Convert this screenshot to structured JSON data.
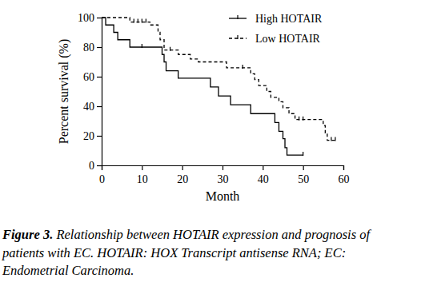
{
  "chart_data": {
    "type": "survival",
    "x_label": "Month",
    "y_label": "Percent survival (%)",
    "xlim": [
      0,
      60
    ],
    "xticks": [
      0,
      10,
      20,
      30,
      40,
      50,
      60
    ],
    "ylim": [
      0,
      100
    ],
    "yticks": [
      0,
      20,
      40,
      60,
      80,
      100
    ],
    "legend": "top-right",
    "series": [
      {
        "name": "High HOTAIR",
        "color": "#000000",
        "line_style": "solid",
        "marker": "tick",
        "x": [
          0,
          1,
          3,
          4,
          7,
          15,
          15.5,
          16,
          19,
          27,
          29,
          32,
          37,
          43,
          44,
          45,
          45.5,
          46,
          50
        ],
        "values": [
          100,
          95,
          90,
          85,
          80,
          75,
          70,
          64,
          59,
          53,
          47,
          41,
          35,
          29,
          23,
          18,
          12,
          7,
          7
        ],
        "censored": [
          10,
          50
        ]
      },
      {
        "name": "Low HOTAIR",
        "color": "#000000",
        "line_style": "dashed",
        "marker": "tick",
        "x": [
          0,
          7,
          12,
          14,
          14.5,
          15.5,
          19,
          22,
          24,
          31,
          37,
          38,
          39,
          41,
          42,
          44,
          45,
          46.5,
          48,
          55,
          55.5,
          56,
          58
        ],
        "values": [
          100,
          97,
          95,
          90,
          85,
          78,
          75,
          72,
          70,
          66,
          62,
          58,
          54,
          50,
          46,
          43,
          39,
          35,
          31,
          27,
          22,
          17,
          17
        ],
        "censored": [
          8,
          9,
          10,
          11,
          17,
          35,
          49,
          50,
          57,
          58
        ]
      }
    ],
    "caption_label": "Figure 3.",
    "caption": [
      " Relationship between HOTAIR expression and prognosis of",
      "patients with EC. HOTAIR: HOX Transcript antisense RNA; EC:",
      "Endometrial Carcinoma."
    ]
  }
}
